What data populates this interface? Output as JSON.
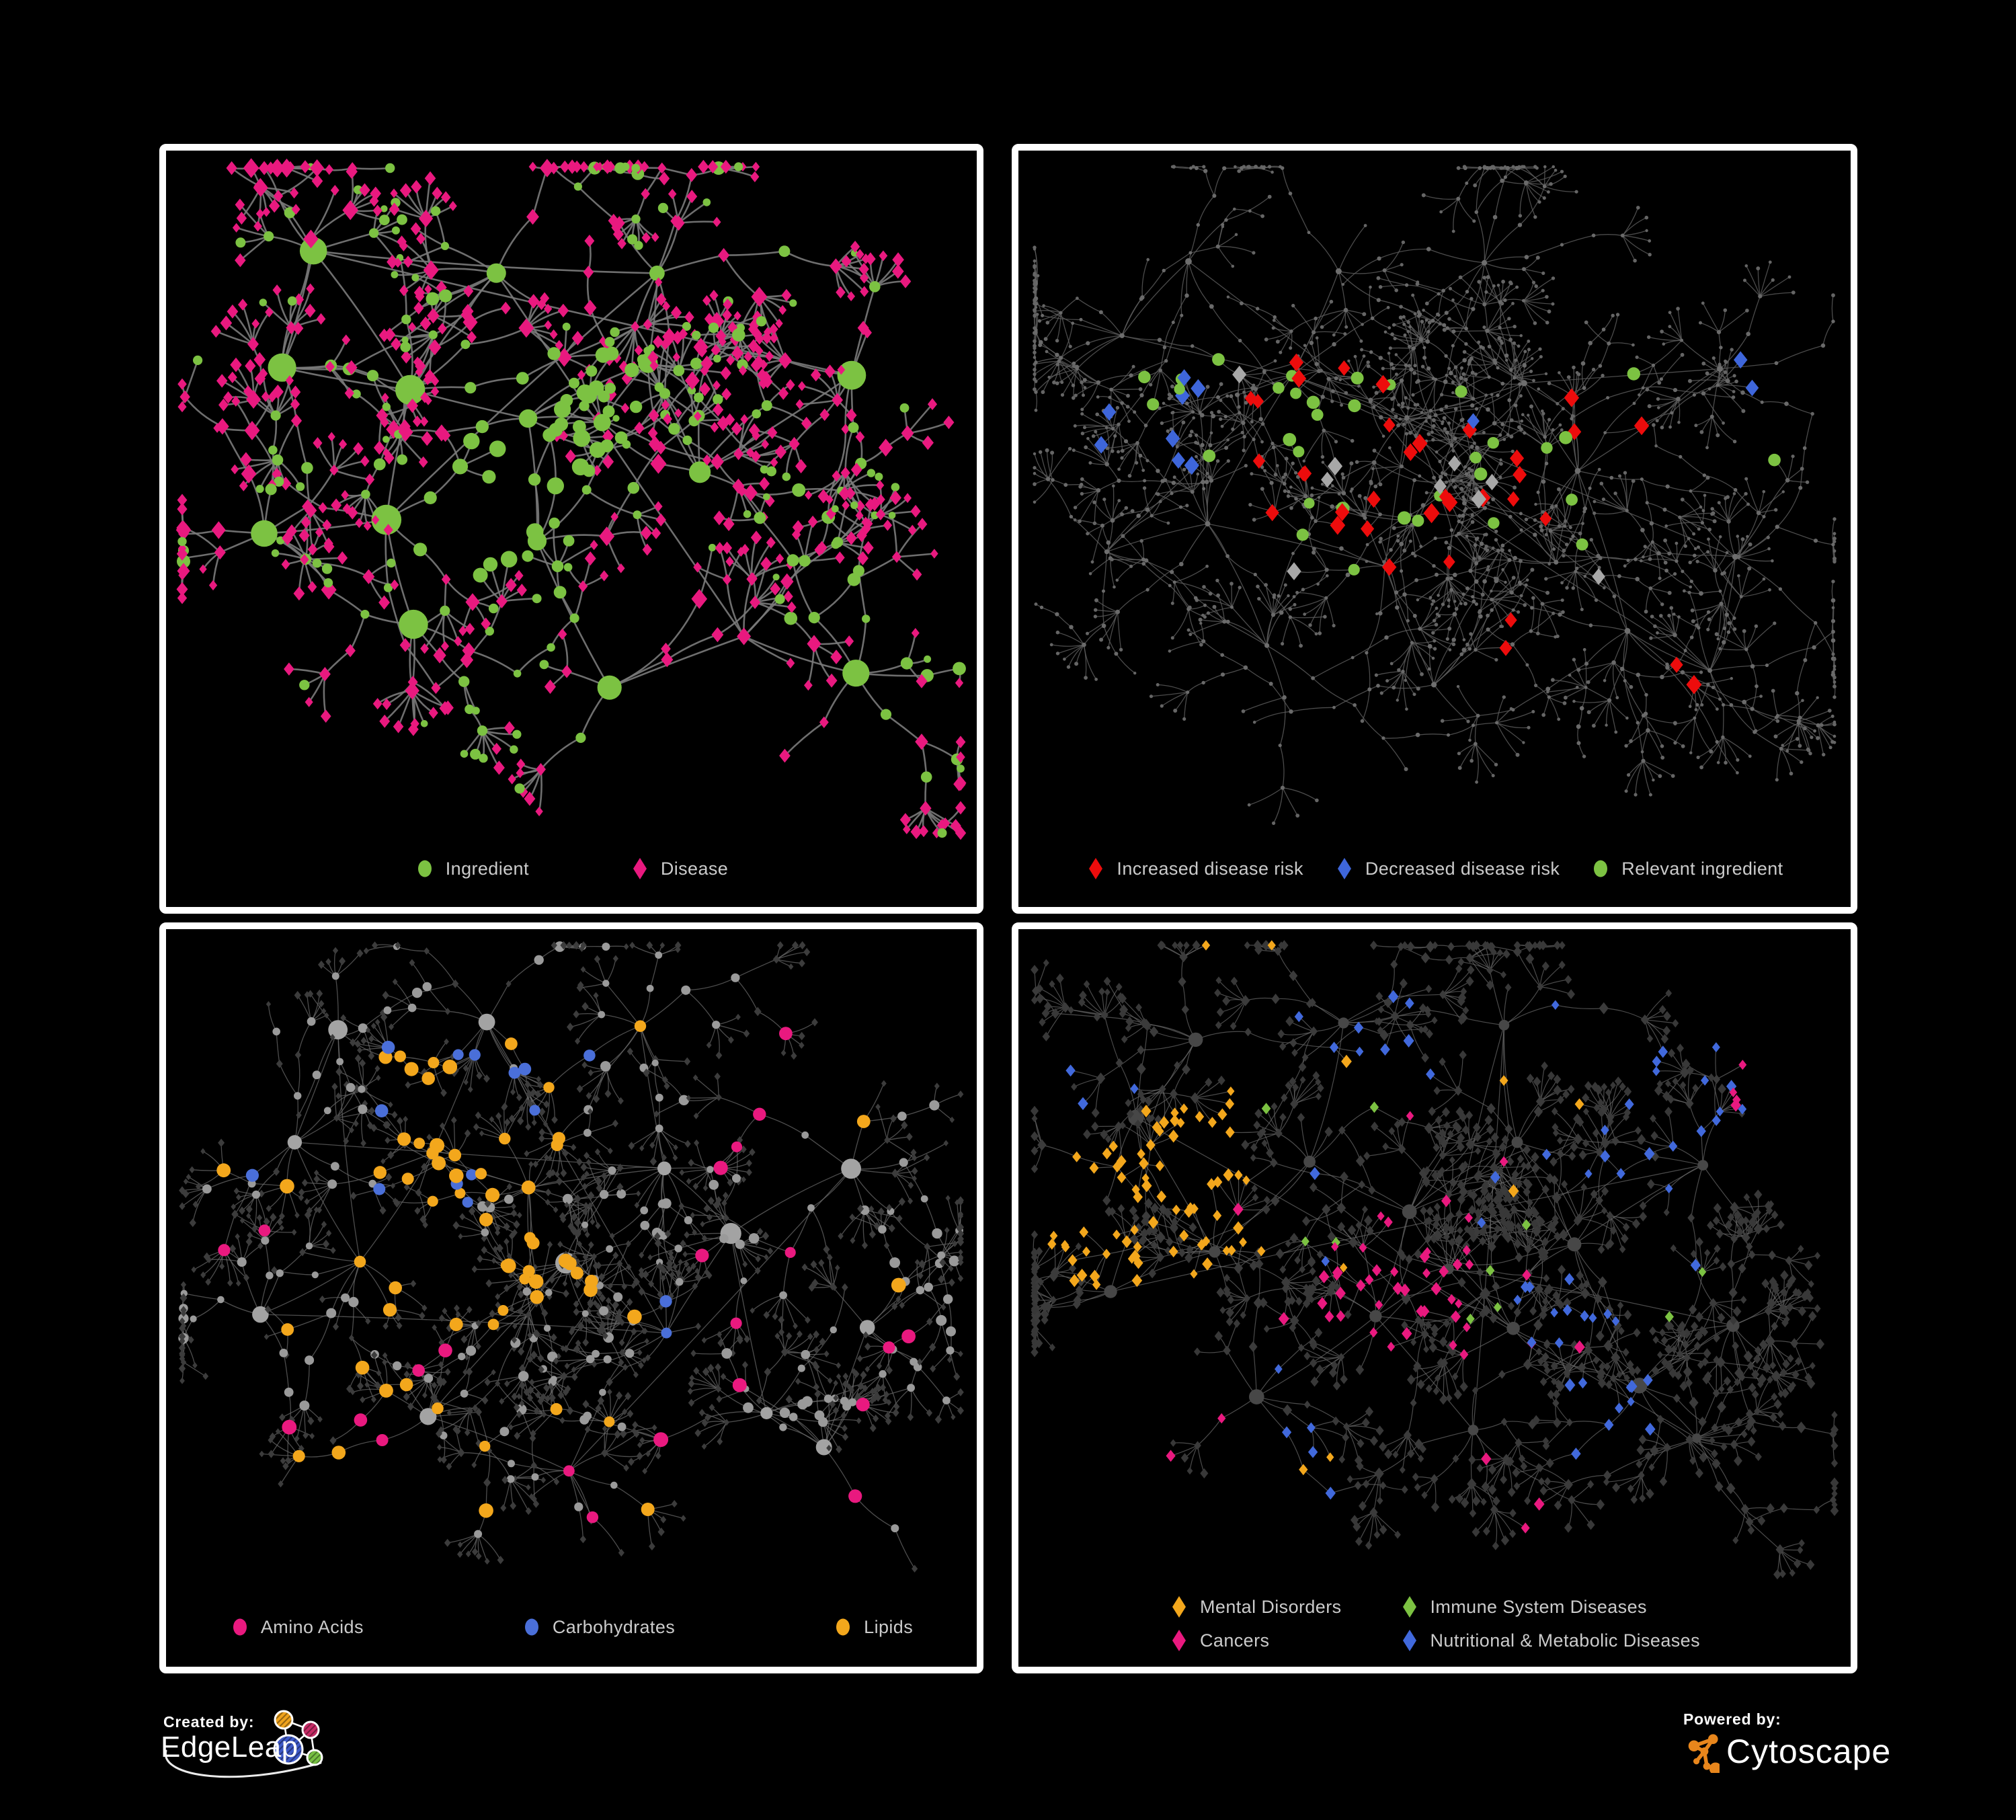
{
  "page": {
    "background": "#000000",
    "legend_text_color": "#CBCBCB"
  },
  "branding": {
    "created": {
      "label": "Created by:",
      "brand": "EdgeLeap"
    },
    "powered": {
      "label": "Powered by:",
      "brand": "Cytoscape"
    },
    "cytoscape_orange": "#E8861C",
    "edgeleap_colors": {
      "orange": "#EFA31D",
      "magenta": "#C72B66",
      "blue": "#3D59C8",
      "green": "#77C043"
    }
  },
  "net_anchors": [
    [
      0.46,
      0.4
    ],
    [
      0.33,
      0.33
    ],
    [
      0.6,
      0.32
    ],
    [
      0.25,
      0.52
    ],
    [
      0.43,
      0.58
    ],
    [
      0.68,
      0.48
    ],
    [
      0.3,
      0.72
    ],
    [
      0.52,
      0.8
    ],
    [
      0.72,
      0.72
    ],
    [
      0.14,
      0.28
    ],
    [
      0.84,
      0.33
    ],
    [
      0.58,
      0.14
    ],
    [
      0.2,
      0.13
    ],
    [
      0.84,
      0.8
    ],
    [
      0.38,
      0.13
    ],
    [
      0.11,
      0.58
    ],
    [
      0.88,
      0.58
    ],
    [
      0.5,
      0.5
    ],
    [
      0.62,
      0.62
    ]
  ],
  "panels": [
    {
      "id": "ingredient-disease",
      "legend": [
        {
          "shape": "ellipse",
          "color": "#7CC242",
          "label": "Ingredient"
        },
        {
          "shape": "diamond",
          "color": "#E9197F",
          "label": "Disease"
        }
      ],
      "net": {
        "seed": 11,
        "hubs": 16,
        "branch": [
          4,
          7
        ],
        "maxSteps": 3,
        "fork": 0.18,
        "fanProb": 0.72,
        "step": [
          58,
          105
        ],
        "fan": [
          30,
          64
        ],
        "bottomPad": 130,
        "edge": {
          "color": "#7A7A7A",
          "width": 2.6,
          "opacity": 0.9
        },
        "base": {
          "hub": [
            {
              "shape": "circle",
              "color": "#7CC242",
              "min": 11,
              "max": 23,
              "w": 0.85
            },
            {
              "shape": "diamond",
              "color": "#E9197F",
              "min": 13,
              "max": 19,
              "w": 0.15
            }
          ],
          "mid": [
            {
              "shape": "diamond",
              "color": "#E9197F",
              "min": 8,
              "max": 15,
              "w": 0.58
            },
            {
              "shape": "circle",
              "color": "#7CC242",
              "min": 6,
              "max": 10,
              "w": 0.42
            }
          ],
          "leaf": [
            {
              "shape": "diamond",
              "color": "#E9197F",
              "min": 7,
              "max": 11,
              "w": 0.84
            },
            {
              "shape": "circle",
              "color": "#7CC242",
              "min": 5,
              "max": 8,
              "w": 0.16
            }
          ]
        },
        "highlights": [
          {
            "shape": "circle",
            "color": "#7CC242",
            "min": 8,
            "max": 13,
            "roles": [
              "mid",
              "leaf"
            ],
            "clusters": [
              [
                0.47,
                0.38,
                0.08,
                22
              ],
              [
                0.42,
                0.52,
                0.06,
                12
              ],
              [
                0.56,
                0.33,
                0.05,
                8
              ]
            ]
          }
        ]
      }
    },
    {
      "id": "disease-risk",
      "legend": [
        {
          "shape": "diamond",
          "color": "#ED0C0C",
          "label": "Increased disease risk"
        },
        {
          "shape": "diamond",
          "color": "#3E66DB",
          "label": "Decreased disease risk"
        },
        {
          "shape": "ellipse",
          "color": "#7CC242",
          "label": "Relevant ingredient"
        }
      ],
      "net": {
        "seed": 22,
        "hubs": 19,
        "branch": [
          5,
          9
        ],
        "maxSteps": 4,
        "fork": 0.22,
        "fanProb": 0.75,
        "step": [
          44,
          84
        ],
        "fan": [
          24,
          56
        ],
        "bottomPad": 130,
        "edge": {
          "color": "#5E5E5E",
          "width": 1.3,
          "opacity": 0.8
        },
        "base": {
          "hub": [
            {
              "shape": "circle",
              "color": "#6E6E6E",
              "min": 3.2,
              "max": 5
            }
          ],
          "mid": [
            {
              "shape": "circle",
              "color": "#6A6A6A",
              "min": 2.4,
              "max": 3.4
            }
          ],
          "leaf": [
            {
              "shape": "circle",
              "color": "#656565",
              "min": 2.2,
              "max": 3
            }
          ]
        },
        "highlights": [
          {
            "shape": "diamond",
            "color": "#ED0C0C",
            "min": 11,
            "max": 15,
            "roles": [
              "mid",
              "leaf"
            ],
            "clusters": [
              [
                0.42,
                0.4,
                0.15,
                13
              ],
              [
                0.55,
                0.42,
                0.11,
                9
              ],
              [
                0.3,
                0.33,
                0.05,
                3
              ],
              [
                0.72,
                0.4,
                0.06,
                3
              ],
              [
                0.62,
                0.72,
                0.05,
                2
              ],
              [
                0.78,
                0.78,
                0.04,
                2
              ],
              [
                0.47,
                0.55,
                0.08,
                3
              ]
            ]
          },
          {
            "shape": "diamond",
            "color": "#3E66DB",
            "min": 11,
            "max": 14,
            "roles": [
              "mid",
              "leaf"
            ],
            "clusters": [
              [
                0.17,
                0.38,
                0.07,
                6
              ],
              [
                0.2,
                0.45,
                0.04,
                2
              ],
              [
                0.86,
                0.28,
                0.04,
                2
              ],
              [
                0.56,
                0.4,
                0.02,
                1
              ]
            ]
          },
          {
            "shape": "diamond",
            "color": "#A8A8A8",
            "min": 11,
            "max": 14,
            "roles": [
              "mid",
              "leaf"
            ],
            "clusters": [
              [
                0.24,
                0.33,
                0.03,
                1
              ],
              [
                0.36,
                0.44,
                0.04,
                2
              ],
              [
                0.52,
                0.45,
                0.05,
                2
              ],
              [
                0.57,
                0.5,
                0.04,
                2
              ],
              [
                0.7,
                0.63,
                0.03,
                1
              ],
              [
                0.3,
                0.62,
                0.03,
                1
              ]
            ]
          },
          {
            "shape": "circle",
            "color": "#7CC242",
            "min": 8,
            "max": 10,
            "roles": [
              "mid",
              "leaf",
              "hub"
            ],
            "clusters": [
              [
                0.45,
                0.42,
                0.13,
                15
              ],
              [
                0.25,
                0.37,
                0.08,
                6
              ],
              [
                0.6,
                0.5,
                0.1,
                6
              ],
              [
                0.35,
                0.55,
                0.06,
                3
              ],
              [
                0.15,
                0.3,
                0.05,
                2
              ],
              [
                0.75,
                0.33,
                0.03,
                1
              ],
              [
                0.9,
                0.45,
                0.02,
                1
              ]
            ]
          }
        ]
      }
    },
    {
      "id": "nutrient-classes",
      "legend": [
        {
          "shape": "ellipse",
          "color": "#E9197F",
          "label": "Amino Acids"
        },
        {
          "shape": "ellipse",
          "color": "#4A6FD9",
          "label": "Carbohydrates"
        },
        {
          "shape": "ellipse",
          "color": "#F3A71C",
          "label": "Lipids"
        }
      ],
      "net": {
        "seed": 33,
        "hubs": 19,
        "branch": [
          5,
          9
        ],
        "maxSteps": 3,
        "fork": 0.22,
        "fanProb": 0.75,
        "step": [
          46,
          88
        ],
        "fan": [
          24,
          56
        ],
        "bottomPad": 130,
        "edge": {
          "color": "#6B6B6B",
          "width": 1.3,
          "opacity": 0.72
        },
        "base": {
          "hub": [
            {
              "shape": "circle",
              "color": "#A3A3A3",
              "min": 9,
              "max": 16
            }
          ],
          "mid": [
            {
              "shape": "circle",
              "color": "#9A9A9A",
              "min": 5,
              "max": 8,
              "w": 0.75
            },
            {
              "shape": "diamond",
              "color": "#3C3C3C",
              "min": 5,
              "max": 7,
              "w": 0.25
            }
          ],
          "leaf": [
            {
              "shape": "diamond",
              "color": "#3C3C3C",
              "min": 4.5,
              "max": 6.5
            }
          ]
        },
        "highlights": [
          {
            "shape": "circle",
            "color": "#F3A71C",
            "min": 8,
            "max": 11,
            "roles": [
              "mid",
              "hub"
            ],
            "clusters": [
              [
                0.4,
                0.26,
                0.09,
                15
              ],
              [
                0.35,
                0.45,
                0.08,
                12
              ],
              [
                0.47,
                0.52,
                0.06,
                8
              ],
              [
                0.3,
                0.33,
                0.05,
                5
              ],
              [
                0.5,
                0.45,
                0.45,
                20
              ],
              [
                0.22,
                0.7,
                0.05,
                3
              ]
            ]
          },
          {
            "shape": "circle",
            "color": "#4A6FD9",
            "min": 8,
            "max": 10,
            "roles": [
              "mid",
              "hub"
            ],
            "clusters": [
              [
                0.38,
                0.22,
                0.06,
                7
              ],
              [
                0.33,
                0.4,
                0.04,
                3
              ],
              [
                0.62,
                0.6,
                0.03,
                2
              ],
              [
                0.12,
                0.33,
                0.02,
                1
              ],
              [
                0.47,
                0.2,
                0.03,
                2
              ]
            ]
          },
          {
            "shape": "circle",
            "color": "#E9197F",
            "min": 8,
            "max": 11,
            "roles": [
              "mid",
              "hub"
            ],
            "clusters": [
              [
                0.5,
                0.55,
                0.42,
                13
              ],
              [
                0.13,
                0.45,
                0.05,
                2
              ],
              [
                0.75,
                0.3,
                0.05,
                2
              ],
              [
                0.55,
                0.85,
                0.05,
                2
              ],
              [
                0.25,
                0.75,
                0.04,
                2
              ],
              [
                0.88,
                0.14,
                0.03,
                1
              ]
            ]
          }
        ]
      }
    },
    {
      "id": "disease-classes",
      "legend": [
        {
          "shape": "diamond",
          "color": "#F3A71C",
          "label": "Mental Disorders"
        },
        {
          "shape": "diamond",
          "color": "#7CC242",
          "label": "Immune System Diseases"
        },
        {
          "shape": "diamond",
          "color": "#E9197F",
          "label": "Cancers"
        },
        {
          "shape": "diamond",
          "color": "#4169DC",
          "label": "Nutritional & Metabolic Diseases"
        }
      ],
      "net": {
        "seed": 44,
        "hubs": 19,
        "branch": [
          5,
          9
        ],
        "maxSteps": 3,
        "fork": 0.22,
        "fanProb": 0.75,
        "step": [
          46,
          86
        ],
        "fan": [
          24,
          56
        ],
        "bottomPad": 150,
        "edge": {
          "color": "#6B6B6B",
          "width": 1.2,
          "opacity": 0.7
        },
        "base": {
          "hub": [
            {
              "shape": "circle",
              "color": "#474747",
              "min": 7,
              "max": 12
            }
          ],
          "mid": [
            {
              "shape": "diamond",
              "color": "#3B3B3B",
              "min": 6,
              "max": 9
            }
          ],
          "leaf": [
            {
              "shape": "diamond",
              "color": "#383838",
              "min": 5.5,
              "max": 8
            }
          ]
        },
        "highlights": [
          {
            "shape": "diamond",
            "color": "#F3A71C",
            "min": 7,
            "max": 10,
            "roles": [
              "mid",
              "leaf"
            ],
            "clusters": [
              [
                0.15,
                0.4,
                0.1,
                38
              ],
              [
                0.2,
                0.32,
                0.07,
                14
              ],
              [
                0.1,
                0.5,
                0.06,
                10
              ],
              [
                0.25,
                0.47,
                0.05,
                8
              ],
              [
                0.45,
                0.22,
                0.3,
                10
              ],
              [
                0.33,
                0.88,
                0.04,
                2
              ]
            ]
          },
          {
            "shape": "diamond",
            "color": "#E9197F",
            "min": 7,
            "max": 10,
            "roles": [
              "mid",
              "leaf"
            ],
            "clusters": [
              [
                0.45,
                0.5,
                0.1,
                20
              ],
              [
                0.52,
                0.58,
                0.08,
                12
              ],
              [
                0.38,
                0.58,
                0.06,
                8
              ],
              [
                0.88,
                0.22,
                0.04,
                4
              ],
              [
                0.5,
                0.6,
                0.38,
                9
              ],
              [
                0.65,
                0.9,
                0.04,
                2
              ]
            ]
          },
          {
            "shape": "diamond",
            "color": "#4169DC",
            "min": 7,
            "max": 10,
            "roles": [
              "mid",
              "leaf"
            ],
            "clusters": [
              [
                0.66,
                0.58,
                0.06,
                12
              ],
              [
                0.78,
                0.28,
                0.1,
                13
              ],
              [
                0.7,
                0.75,
                0.06,
                8
              ],
              [
                0.4,
                0.15,
                0.08,
                8
              ],
              [
                0.3,
                0.85,
                0.05,
                4
              ],
              [
                0.6,
                0.4,
                0.36,
                16
              ],
              [
                0.12,
                0.2,
                0.05,
                3
              ]
            ]
          },
          {
            "shape": "diamond",
            "color": "#7CC242",
            "min": 7,
            "max": 9,
            "roles": [
              "mid",
              "leaf"
            ],
            "clusters": [
              [
                0.4,
                0.35,
                0.18,
                4
              ],
              [
                0.55,
                0.55,
                0.18,
                4
              ],
              [
                0.75,
                0.6,
                0.08,
                2
              ]
            ]
          }
        ]
      }
    }
  ]
}
